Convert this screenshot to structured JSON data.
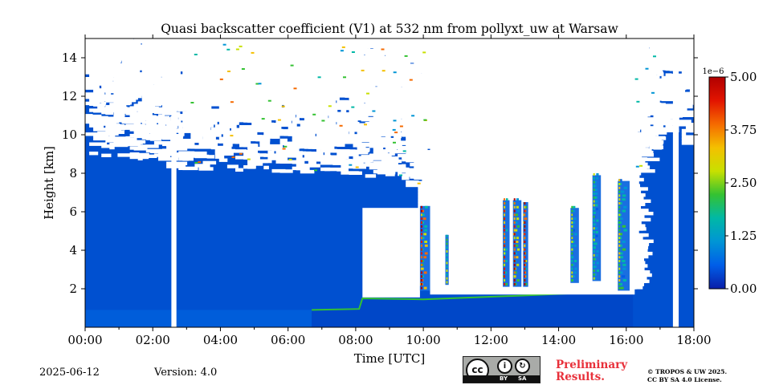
{
  "chart_data": {
    "type": "heatmap",
    "title": "Quasi backscatter coefficient (V1) at 532 nm from pollyxt_uw at Warsaw",
    "xlabel": "Time [UTC]",
    "ylabel": "Height [km]",
    "xlim": [
      0,
      18
    ],
    "ylim": [
      0,
      15
    ],
    "x_ticks": [
      {
        "value": 0,
        "label": "00:00"
      },
      {
        "value": 2,
        "label": "02:00"
      },
      {
        "value": 4,
        "label": "04:00"
      },
      {
        "value": 6,
        "label": "06:00"
      },
      {
        "value": 8,
        "label": "08:00"
      },
      {
        "value": 10,
        "label": "10:00"
      },
      {
        "value": 12,
        "label": "12:00"
      },
      {
        "value": 14,
        "label": "14:00"
      },
      {
        "value": 16,
        "label": "16:00"
      },
      {
        "value": 18,
        "label": "18:00"
      }
    ],
    "y_ticks": [
      {
        "value": 2,
        "label": "2"
      },
      {
        "value": 4,
        "label": "4"
      },
      {
        "value": 6,
        "label": "6"
      },
      {
        "value": 8,
        "label": "8"
      },
      {
        "value": 10,
        "label": "10"
      },
      {
        "value": 12,
        "label": "12"
      },
      {
        "value": 14,
        "label": "14"
      }
    ],
    "colorbar": {
      "min": 0,
      "max": 5e-06,
      "exponent_label": "1e−6",
      "ticks": [
        {
          "value": 0,
          "label": "0.00"
        },
        {
          "value": 1.25,
          "label": "1.25"
        },
        {
          "value": 2.5,
          "label": "2.50"
        },
        {
          "value": 3.75,
          "label": "3.75"
        },
        {
          "value": 5.0,
          "label": "5.00"
        }
      ],
      "colormap": [
        "#0a1ea8",
        "#005ee8",
        "#0095d5",
        "#00b8a6",
        "#34c232",
        "#c8e000",
        "#f4c000",
        "#f56a00",
        "#e21400",
        "#b00000"
      ]
    },
    "background_value_color": "#0050d0",
    "no_signal_gaps_hours": [
      {
        "start": 2.55,
        "end": 2.7
      },
      {
        "start": 17.38,
        "end": 17.55
      }
    ],
    "clouds": [
      {
        "start": 9.9,
        "end": 10.2,
        "base_km": 1.9,
        "top_km": 6.3,
        "peak": 3.5
      },
      {
        "start": 10.65,
        "end": 10.75,
        "base_km": 2.2,
        "top_km": 4.8,
        "peak": 1.4
      },
      {
        "start": 12.35,
        "end": 12.55,
        "base_km": 2.1,
        "top_km": 6.6,
        "peak": 2.4
      },
      {
        "start": 12.65,
        "end": 12.9,
        "base_km": 2.1,
        "top_km": 6.6,
        "peak": 2.8
      },
      {
        "start": 12.95,
        "end": 13.1,
        "base_km": 2.1,
        "top_km": 6.5,
        "peak": 3.2
      },
      {
        "start": 14.35,
        "end": 14.6,
        "base_km": 2.3,
        "top_km": 6.2,
        "peak": 1.6
      },
      {
        "start": 15.0,
        "end": 15.25,
        "base_km": 2.4,
        "top_km": 7.9,
        "peak": 1.4
      },
      {
        "start": 15.75,
        "end": 16.1,
        "base_km": 1.9,
        "top_km": 7.6,
        "peak": 1.8
      }
    ],
    "boundary_layer_top_km": [
      {
        "t": 6.7,
        "h": 0.9
      },
      {
        "t": 8.1,
        "h": 0.95
      },
      {
        "t": 8.2,
        "h": 1.5
      },
      {
        "t": 10.0,
        "h": 1.45
      },
      {
        "t": 13.0,
        "h": 1.65
      },
      {
        "t": 16.2,
        "h": 1.9
      }
    ]
  },
  "footer": {
    "date": "2025-06-12",
    "version": "Version: 4.0",
    "preliminary_line1": "Preliminary",
    "preliminary_line2": "Results.",
    "copyright_line1": "© TROPOS & UW 2025.",
    "copyright_line2": "CC BY SA 4.0 License.",
    "license_badge": {
      "cc": "cc",
      "by": "BY",
      "sa": "SA"
    }
  }
}
